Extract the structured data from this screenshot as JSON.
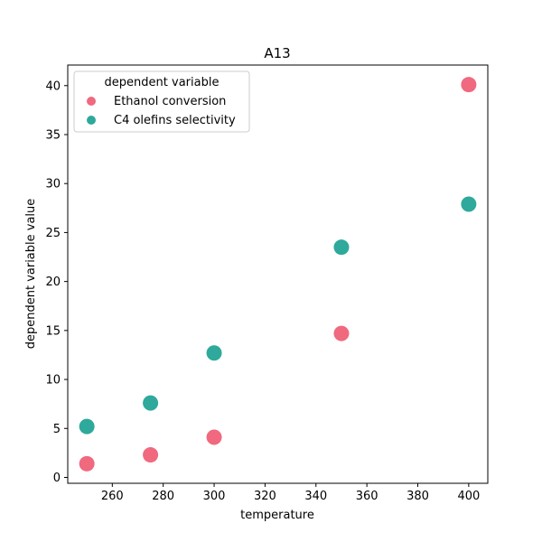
{
  "chart_data": {
    "type": "scatter",
    "title": "A13",
    "xlabel": "temperature",
    "ylabel": "dependent variable value",
    "xlim": [
      242.5,
      407.5
    ],
    "ylim": [
      -0.6,
      42.1
    ],
    "xticks": [
      260,
      280,
      300,
      320,
      340,
      360,
      380,
      400
    ],
    "yticks": [
      0,
      5,
      10,
      15,
      20,
      25,
      30,
      35,
      40
    ],
    "grid": false,
    "legend": {
      "title": "dependent variable",
      "position": "top-left"
    },
    "series": [
      {
        "name": "Ethanol conversion",
        "color": "#f0697e",
        "points": [
          {
            "x": 250,
            "y": 1.4
          },
          {
            "x": 275,
            "y": 2.3
          },
          {
            "x": 300,
            "y": 4.1
          },
          {
            "x": 350,
            "y": 14.7
          },
          {
            "x": 400,
            "y": 40.1
          }
        ]
      },
      {
        "name": "C4 olefins selectivity",
        "color": "#2ea99b",
        "points": [
          {
            "x": 250,
            "y": 5.2
          },
          {
            "x": 275,
            "y": 7.6
          },
          {
            "x": 300,
            "y": 12.7
          },
          {
            "x": 350,
            "y": 23.5
          },
          {
            "x": 400,
            "y": 27.9
          }
        ]
      }
    ]
  }
}
